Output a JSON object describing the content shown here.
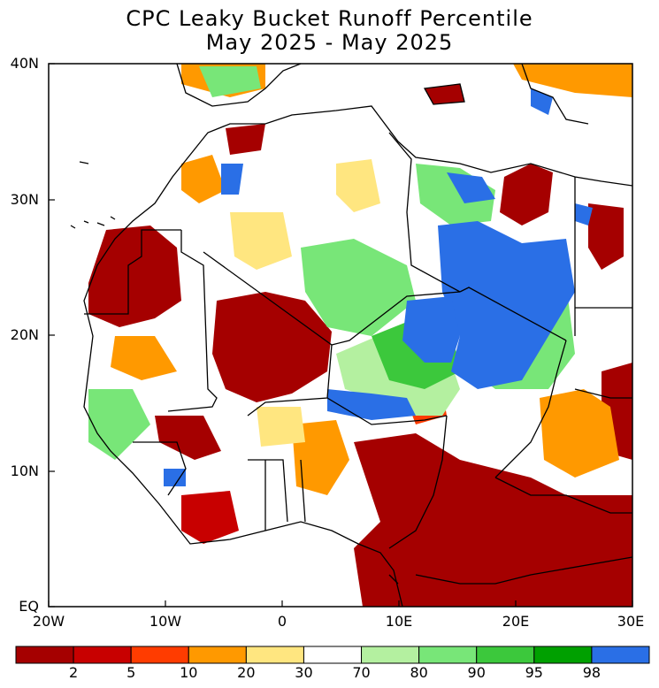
{
  "title": "CPC Leaky Bucket Runoff Percentile",
  "subtitle": "May 2025 - May 2025",
  "axes": {
    "y_labels": [
      "40N",
      "30N",
      "20N",
      "10N",
      "EQ"
    ],
    "x_labels": [
      "20W",
      "10W",
      "0",
      "10E",
      "20E",
      "30E"
    ],
    "lon_range": [
      -20,
      30
    ],
    "lat_range": [
      0,
      40
    ]
  },
  "legend": {
    "colors": [
      "#a50000",
      "#c80000",
      "#ff3c00",
      "#ff9900",
      "#ffe680",
      "#ffffff",
      "#b4f0a0",
      "#78e678",
      "#3cc83c",
      "#00a000",
      "#2a6fe6"
    ],
    "tick_labels": [
      "2",
      "5",
      "10",
      "20",
      "30",
      "70",
      "80",
      "90",
      "95",
      "98"
    ]
  }
}
